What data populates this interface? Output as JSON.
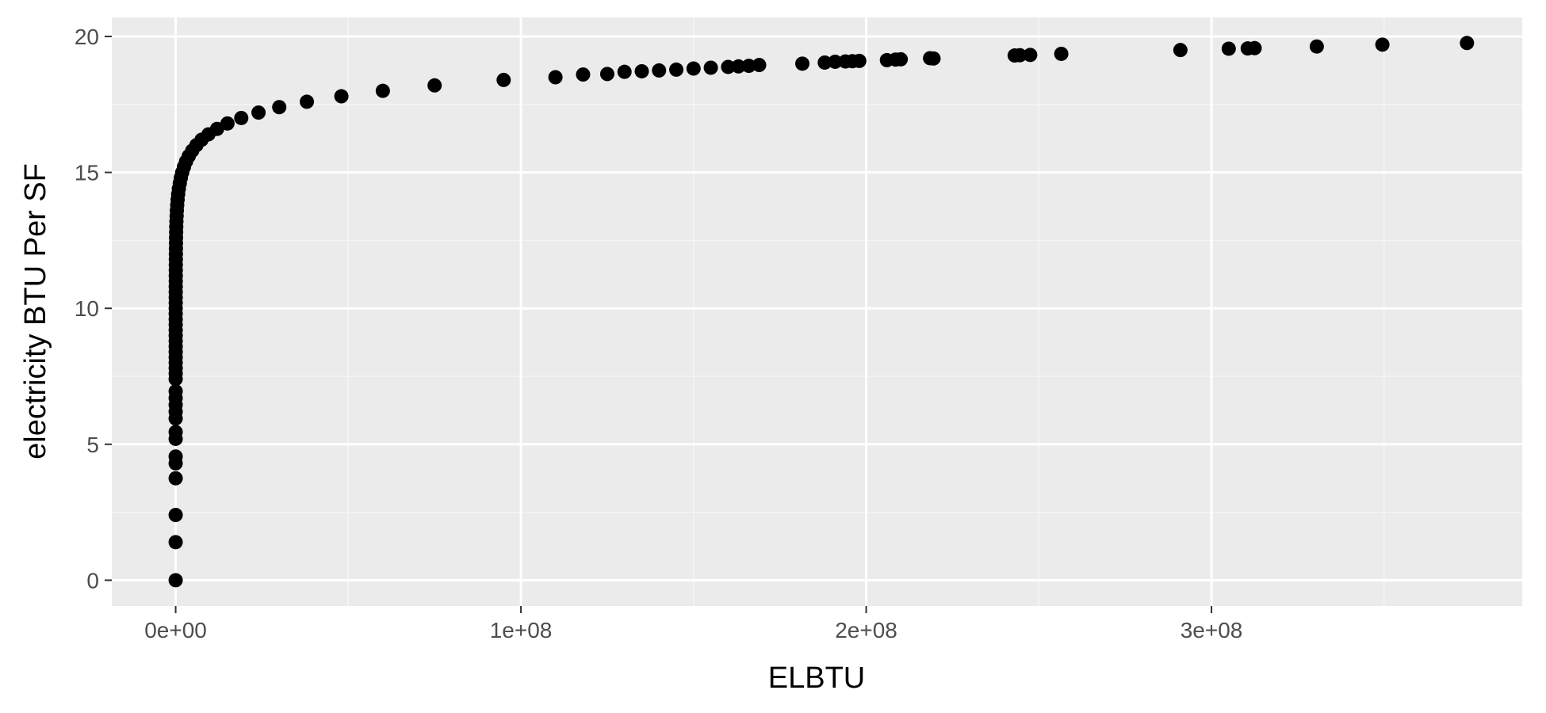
{
  "chart_data": {
    "type": "scatter",
    "xlabel": "ELBTU",
    "ylabel": "electricity BTU Per SF",
    "x_ticks": [
      {
        "value": 0,
        "label": "0e+00"
      },
      {
        "value": 100000000,
        "label": "1e+08"
      },
      {
        "value": 200000000,
        "label": "2e+08"
      },
      {
        "value": 300000000,
        "label": "3e+08"
      }
    ],
    "y_ticks": [
      {
        "value": 0,
        "label": "0"
      },
      {
        "value": 5,
        "label": "5"
      },
      {
        "value": 10,
        "label": "10"
      },
      {
        "value": 15,
        "label": "15"
      },
      {
        "value": 20,
        "label": "20"
      }
    ],
    "xlim": [
      -18500000,
      390000000
    ],
    "ylim": [
      -0.95,
      20.7
    ],
    "grid": true,
    "legend": "none",
    "colors": {
      "panel_background": "#ebebeb",
      "grid_major": "#ffffff",
      "grid_minor": "#f5f5f5",
      "point": "#000000",
      "tick_label": "#4d4d4d",
      "tick_mark": "#333333",
      "axis_title": "#000000"
    },
    "points": [
      [
        0,
        0.0
      ],
      [
        0,
        1.4
      ],
      [
        0,
        2.4
      ],
      [
        0,
        3.75
      ],
      [
        0,
        4.3
      ],
      [
        0,
        4.55
      ],
      [
        0,
        5.2
      ],
      [
        0,
        5.45
      ],
      [
        0,
        5.95
      ],
      [
        0,
        6.2
      ],
      [
        0,
        6.45
      ],
      [
        0,
        6.7
      ],
      [
        0,
        6.95
      ],
      [
        0,
        7.4
      ],
      [
        10000,
        7.6
      ],
      [
        10000,
        7.8
      ],
      [
        10000,
        8.0
      ],
      [
        10000,
        8.2
      ],
      [
        10000,
        8.4
      ],
      [
        10000,
        8.6
      ],
      [
        10000,
        8.8
      ],
      [
        10000,
        9.0
      ],
      [
        10000,
        9.2
      ],
      [
        10000,
        9.4
      ],
      [
        10000,
        9.6
      ],
      [
        10000,
        9.8
      ],
      [
        10000,
        10.0
      ],
      [
        20000,
        10.2
      ],
      [
        20000,
        10.4
      ],
      [
        20000,
        10.6
      ],
      [
        20000,
        10.8
      ],
      [
        30000,
        11.0
      ],
      [
        30000,
        11.2
      ],
      [
        40000,
        11.4
      ],
      [
        40000,
        11.6
      ],
      [
        50000,
        11.8
      ],
      [
        60000,
        12.0
      ],
      [
        70000,
        12.2
      ],
      [
        90000,
        12.4
      ],
      [
        110000,
        12.6
      ],
      [
        140000,
        12.8
      ],
      [
        170000,
        13.0
      ],
      [
        220000,
        13.2
      ],
      [
        280000,
        13.4
      ],
      [
        350000,
        13.6
      ],
      [
        450000,
        13.8
      ],
      [
        570000,
        14.0
      ],
      [
        720000,
        14.2
      ],
      [
        920000,
        14.4
      ],
      [
        1200000,
        14.6
      ],
      [
        1500000,
        14.8
      ],
      [
        1900000,
        15.0
      ],
      [
        2400000,
        15.2
      ],
      [
        3000000,
        15.4
      ],
      [
        3800000,
        15.6
      ],
      [
        4800000,
        15.8
      ],
      [
        6000000,
        16.0
      ],
      [
        7500000,
        16.2
      ],
      [
        9500000,
        16.4
      ],
      [
        12000000,
        16.6
      ],
      [
        15000000,
        16.8
      ],
      [
        19000000,
        17.0
      ],
      [
        24000000,
        17.2
      ],
      [
        30000000,
        17.4
      ],
      [
        38000000,
        17.6
      ],
      [
        48000000,
        17.8
      ],
      [
        60000000,
        18.0
      ],
      [
        75000000,
        18.2
      ],
      [
        95000000,
        18.4
      ],
      [
        110000000,
        18.5
      ],
      [
        118000000,
        18.6
      ],
      [
        125000000,
        18.62
      ],
      [
        130000000,
        18.7
      ],
      [
        135000000,
        18.72
      ],
      [
        140000000,
        18.75
      ],
      [
        145000000,
        18.78
      ],
      [
        150000000,
        18.82
      ],
      [
        155000000,
        18.85
      ],
      [
        160000000,
        18.88
      ],
      [
        163000000,
        18.9
      ],
      [
        166000000,
        18.92
      ],
      [
        169000000,
        18.95
      ],
      [
        181500000,
        19.0
      ],
      [
        188000000,
        19.04
      ],
      [
        191000000,
        19.07
      ],
      [
        194000000,
        19.08
      ],
      [
        196000000,
        19.09
      ],
      [
        198000000,
        19.1
      ],
      [
        206000000,
        19.13
      ],
      [
        208500000,
        19.15
      ],
      [
        210000000,
        19.16
      ],
      [
        218500000,
        19.2
      ],
      [
        219500000,
        19.19
      ],
      [
        243000000,
        19.3
      ],
      [
        244500000,
        19.31
      ],
      [
        247500000,
        19.32
      ],
      [
        256500000,
        19.36
      ],
      [
        291000000,
        19.5
      ],
      [
        305000000,
        19.55
      ],
      [
        310500000,
        19.56
      ],
      [
        312500000,
        19.57
      ],
      [
        330500000,
        19.63
      ],
      [
        349500000,
        19.7
      ],
      [
        374000000,
        19.76
      ]
    ]
  }
}
